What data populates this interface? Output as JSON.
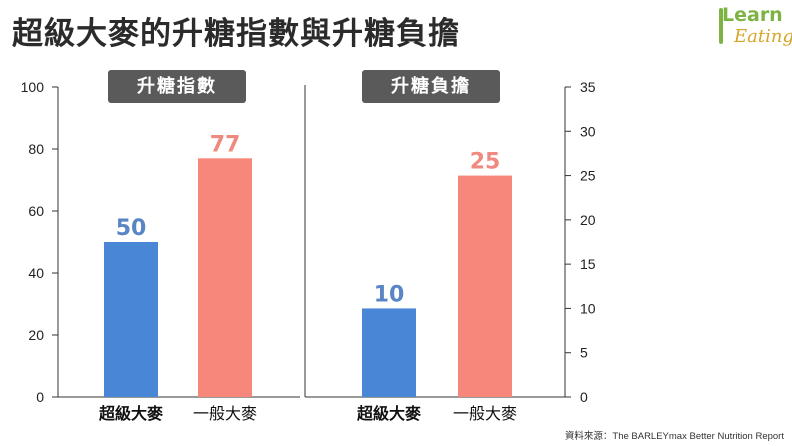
{
  "title": "超級大麥的升糖指數與升糖負擔",
  "logo": {
    "line1": "Learn",
    "line2": "Eating"
  },
  "source": "資料來源：The BARLEYmax Better Nutrition Report",
  "colors": {
    "super": "#4a86d6",
    "regular": "#f7877b",
    "label_super": "#5a85c4",
    "label_regular": "#f08a80",
    "panel_title_bg": "#5a5a5a"
  },
  "chart_data": [
    {
      "type": "bar",
      "title": "升糖指數",
      "categories": [
        "超級大麥",
        "一般大麥"
      ],
      "values": [
        50,
        77
      ],
      "ylim": [
        0,
        100
      ],
      "yticks": [
        0,
        20,
        40,
        60,
        80,
        100
      ],
      "axis_side": "left"
    },
    {
      "type": "bar",
      "title": "升糖負擔",
      "categories": [
        "超級大麥",
        "一般大麥"
      ],
      "values": [
        10,
        25
      ],
      "ylim": [
        0,
        35
      ],
      "yticks": [
        0,
        5,
        10,
        15,
        20,
        25,
        30,
        35
      ],
      "axis_side": "right"
    }
  ]
}
